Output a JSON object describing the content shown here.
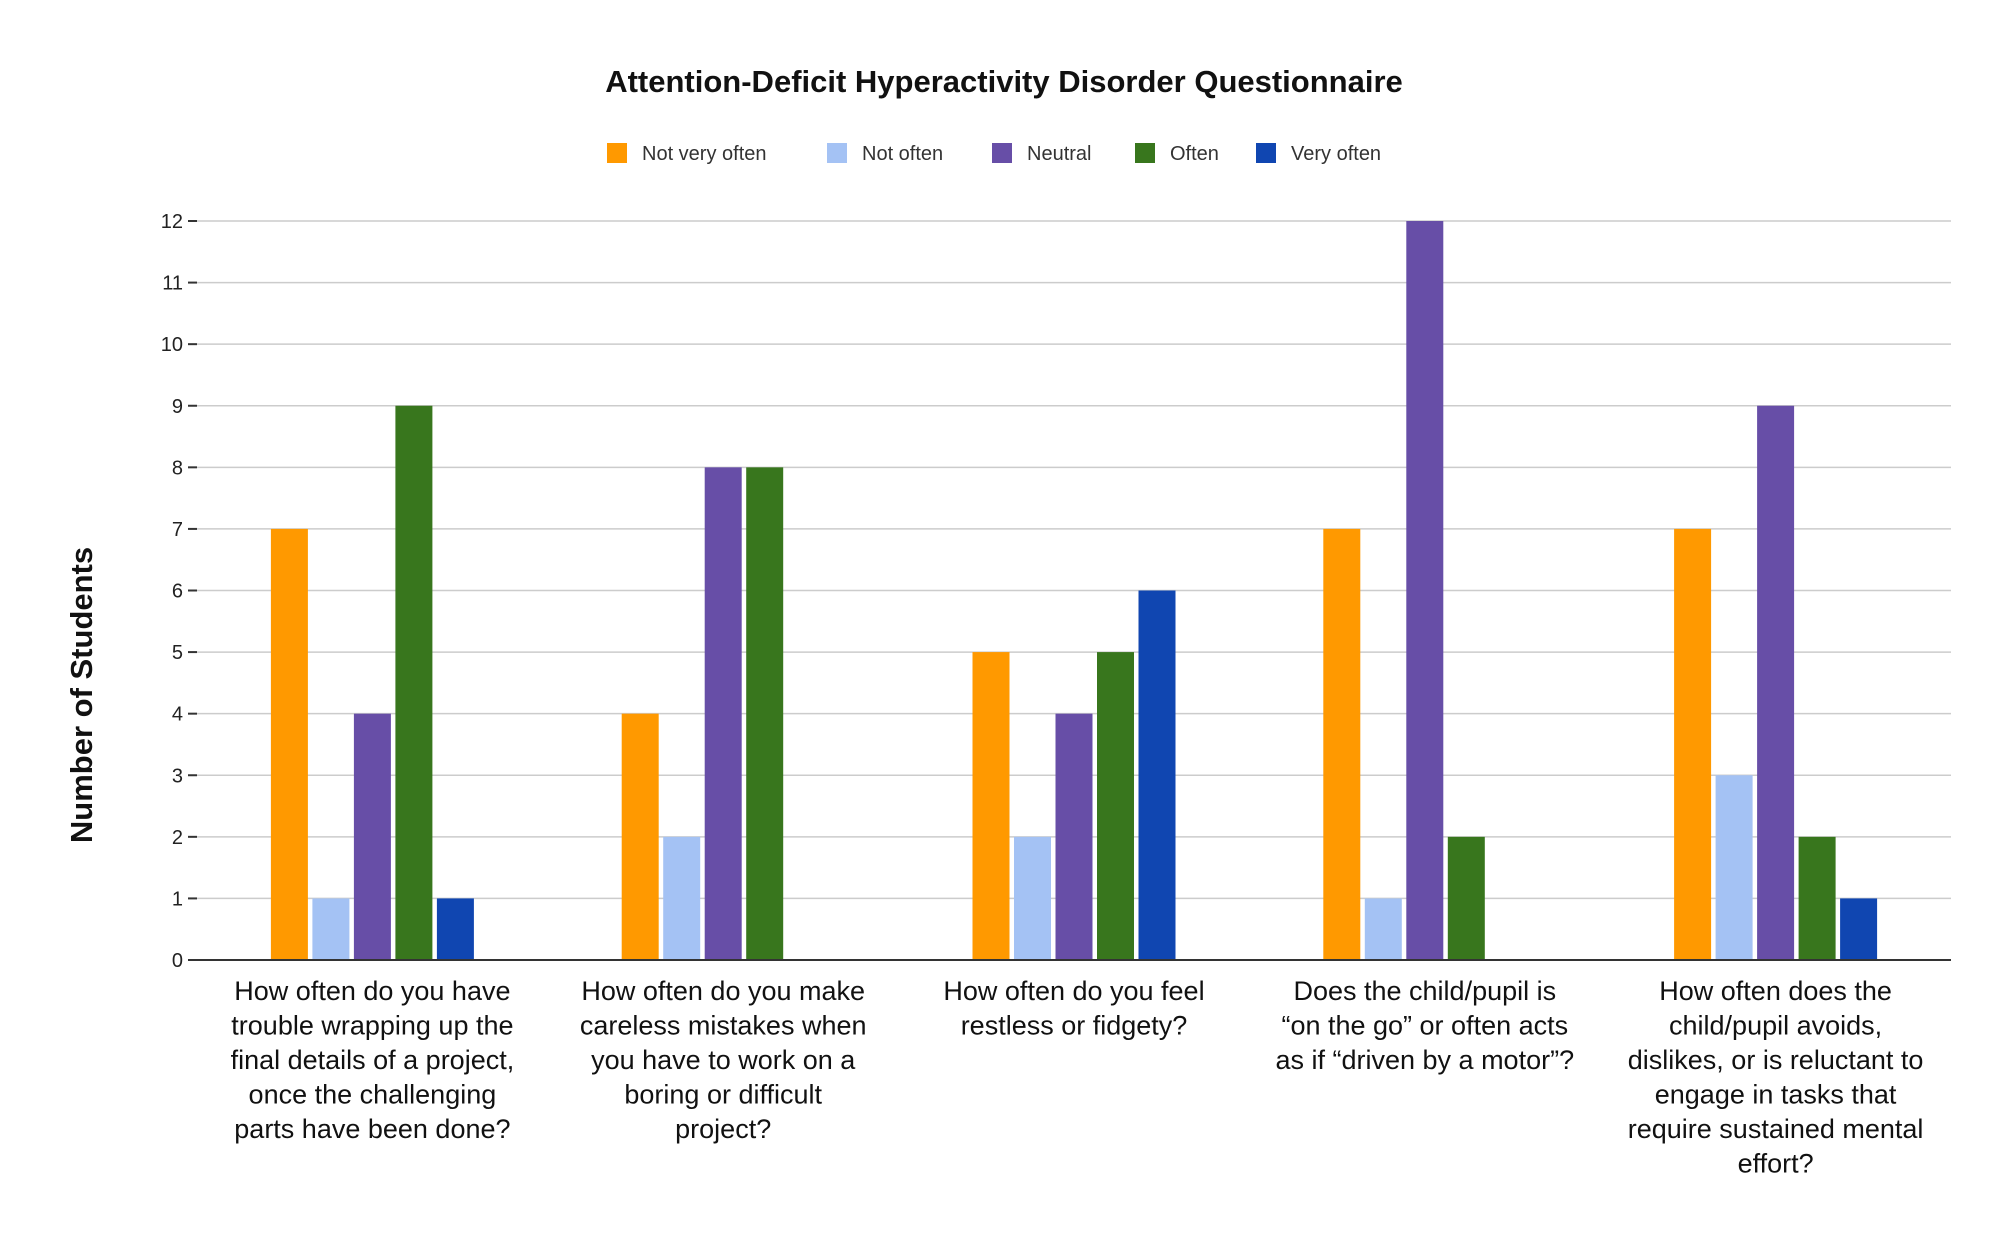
{
  "chart_data": {
    "type": "bar",
    "title": "Attention-Deficit Hyperactivity Disorder Questionnaire",
    "xlabel": "",
    "ylabel": "Number of Students",
    "ylim": [
      0,
      12
    ],
    "yticks": [
      0,
      1,
      2,
      3,
      4,
      5,
      6,
      7,
      8,
      9,
      10,
      11,
      12
    ],
    "grid": true,
    "legend_position": "top",
    "categories": [
      [
        "How often do you have",
        "trouble wrapping up the",
        "final details of a project,",
        "once the challenging",
        "parts have been done?"
      ],
      [
        "How often do you make",
        "careless mistakes when",
        "you have to work on a",
        "boring or difficult",
        "project?"
      ],
      [
        "How often do you feel",
        "restless or fidgety?"
      ],
      [
        "Does the child/pupil is",
        "“on the go” or often acts",
        "as if “driven by a motor”?"
      ],
      [
        "How often does the",
        "child/pupil avoids,",
        "dislikes, or is reluctant to",
        "engage in tasks that",
        "require sustained mental",
        "effort?"
      ]
    ],
    "series": [
      {
        "name": "Not very often",
        "color": "#ff9900",
        "values": [
          7,
          4,
          5,
          7,
          7
        ]
      },
      {
        "name": "Not often",
        "color": "#a4c2f4",
        "values": [
          1,
          2,
          2,
          1,
          3
        ]
      },
      {
        "name": "Neutral",
        "color": "#674ea7",
        "values": [
          4,
          8,
          4,
          12,
          9
        ]
      },
      {
        "name": "Often",
        "color": "#38761d",
        "values": [
          9,
          8,
          5,
          2,
          2
        ]
      },
      {
        "name": "Very often",
        "color": "#1046b1",
        "values": [
          1,
          0,
          6,
          0,
          1
        ]
      }
    ]
  }
}
